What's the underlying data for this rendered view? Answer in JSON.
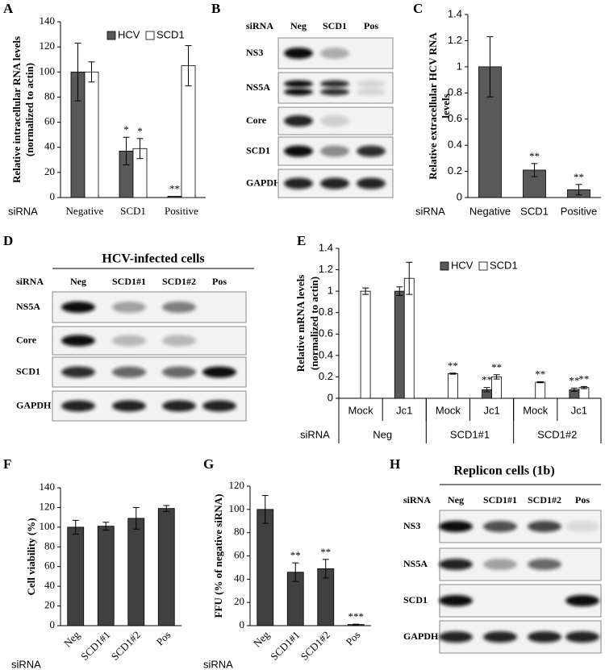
{
  "chart_data": [
    {
      "type": "bar",
      "label": "A",
      "ylabel": [
        "Relative intracellular RNA levels",
        "(normalized to actin)"
      ],
      "x_label": "siRNA",
      "categories": [
        "Negative",
        "SCD1",
        "Positive"
      ],
      "series": [
        {
          "name": "HCV",
          "color": "#595959",
          "values": [
            100,
            37,
            1
          ],
          "errors": [
            23,
            11,
            null
          ],
          "annotations": [
            null,
            "*",
            "**"
          ]
        },
        {
          "name": "SCD1",
          "color": "#ffffff",
          "values": [
            100,
            39,
            105
          ],
          "errors": [
            8,
            8,
            16
          ],
          "annotations": [
            null,
            "*",
            null
          ]
        }
      ],
      "ylim": [
        0,
        140
      ],
      "yticks": [
        0,
        20,
        40,
        60,
        80,
        100,
        120,
        140
      ]
    },
    {
      "type": "bar",
      "label": "C",
      "ylabel": [
        "Relative extracellular HCV RNA",
        "levels"
      ],
      "x_label": "siRNA",
      "categories": [
        "Negative",
        "SCD1",
        "Positive"
      ],
      "series": [
        {
          "color": "#595959",
          "values": [
            1,
            0.21,
            0.06
          ],
          "errors": [
            0.23,
            0.05,
            0.04
          ],
          "annotations": [
            null,
            "**",
            "**"
          ]
        }
      ],
      "ylim": [
        0,
        1.4
      ],
      "yticks": [
        0,
        0.2,
        0.4,
        0.6,
        0.8,
        1,
        1.2,
        1.4
      ]
    },
    {
      "type": "bar",
      "label": "E",
      "ylabel": [
        "Relative mRNA levels",
        "(normalized to actin)"
      ],
      "x_label": "siRNA",
      "categories": [
        "Mock",
        "Jc1",
        "Mock",
        "Jc1",
        "Mock",
        "Jc1"
      ],
      "groups": [
        "Neg",
        "SCD1#1",
        "SCD1#2"
      ],
      "series": [
        {
          "name": "HCV",
          "color": "#595959",
          "values": [
            0,
            1,
            0,
            0.08,
            0,
            0.08
          ],
          "errors": [
            null,
            0.04,
            null,
            0.02,
            null,
            0.015
          ],
          "annotations": [
            null,
            null,
            null,
            "**",
            null,
            "**"
          ]
        },
        {
          "name": "SCD1",
          "color": "#ffffff",
          "values": [
            1,
            1.12,
            0.23,
            0.2,
            0.15,
            0.1
          ],
          "errors": [
            0.03,
            0.15,
            0.005,
            0.02,
            0.005,
            0.01
          ],
          "annotations": [
            null,
            null,
            "**",
            "**",
            "**",
            "**"
          ]
        }
      ],
      "ylim": [
        0,
        1.4
      ],
      "yticks": [
        0,
        0.2,
        0.4,
        0.6,
        0.8,
        1,
        1.2,
        1.4
      ]
    },
    {
      "type": "bar",
      "label": "F",
      "ylabel": [
        "Cell viability (%)"
      ],
      "x_label": "siRNA",
      "categories": [
        "Neg",
        "SCD1#1",
        "SCD1#2",
        "Pos"
      ],
      "series": [
        {
          "color": "#404040",
          "values": [
            100,
            101,
            109,
            119
          ],
          "errors": [
            7,
            4,
            11,
            3
          ],
          "annotations": [
            null,
            null,
            null,
            null
          ]
        }
      ],
      "ylim": [
        0,
        140
      ],
      "yticks": [
        0,
        20,
        40,
        60,
        80,
        100,
        120,
        140
      ]
    },
    {
      "type": "bar",
      "label": "G",
      "ylabel": [
        "FFU (% of negative siRNA)"
      ],
      "x_label": "siRNA",
      "categories": [
        "Neg",
        "SCD1#1",
        "SCD1#2",
        "Pos"
      ],
      "series": [
        {
          "color": "#404040",
          "values": [
            100,
            46,
            49,
            1
          ],
          "errors": [
            12,
            8,
            8,
            0.3
          ],
          "annotations": [
            null,
            "**",
            "**",
            "***"
          ]
        }
      ],
      "ylim": [
        0,
        120
      ],
      "yticks": [
        0,
        20,
        40,
        60,
        80,
        100,
        120
      ]
    }
  ],
  "blots": [
    {
      "label": "B",
      "lane_header": "siRNA",
      "lanes": [
        "Neg",
        "SCD1",
        "Pos"
      ],
      "rows": [
        "NS3",
        "NS5A",
        "Core",
        "SCD1",
        "GAPDH"
      ]
    },
    {
      "label": "D",
      "title": "HCV-infected cells",
      "lane_header": "siRNA",
      "lanes": [
        "Neg",
        "SCD1#1",
        "SCD1#2",
        "Pos"
      ],
      "rows": [
        "NS5A",
        "Core",
        "SCD1",
        "GAPDH"
      ]
    },
    {
      "label": "H",
      "title": "Replicon cells (1b)",
      "lane_header": "siRNA",
      "lanes": [
        "Neg",
        "SCD1#1",
        "SCD1#2",
        "Pos"
      ],
      "rows": [
        "NS3",
        "NS5A",
        "SCD1",
        "GAPDH"
      ]
    }
  ]
}
